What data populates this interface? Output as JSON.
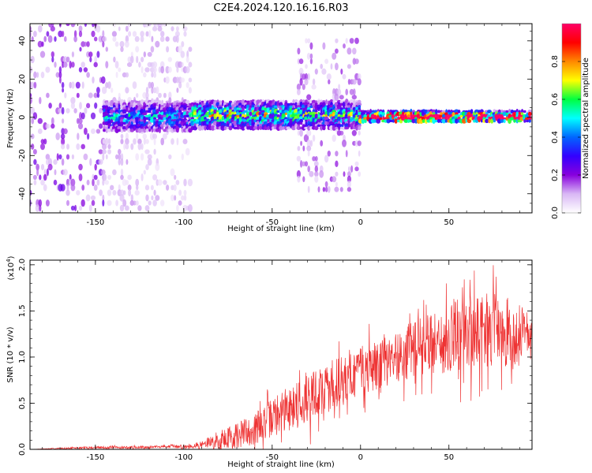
{
  "figure": {
    "title": "C2E4.2024.120.16.16.R03",
    "background": "#ffffff"
  },
  "chart_data": [
    {
      "type": "heatmap",
      "xlabel": "Height of straight line (km)",
      "ylabel": "Frequency (Hz)",
      "xlim": [
        -187,
        97
      ],
      "ylim": [
        -50,
        49
      ],
      "xticks": [
        -150,
        -100,
        -50,
        0,
        50
      ],
      "yticks": [
        -40,
        -20,
        0,
        20,
        40
      ],
      "grid": false,
      "colorbar": {
        "label": "Normalized spectral amplitude",
        "ticks": [
          0.0,
          0.2,
          0.4,
          0.6,
          0.8
        ],
        "range": [
          0,
          1
        ],
        "colors": [
          "#ffffff",
          "#d9b8f5",
          "#8800dd",
          "#3300ff",
          "#0066ff",
          "#00ffff",
          "#00ff40",
          "#ffff00",
          "#ff8800",
          "#ff0000",
          "#ff0066"
        ]
      },
      "regions": [
        {
          "x": [
            -187,
            -145
          ],
          "band": "broadband",
          "freq_range": [
            -50,
            49
          ],
          "amplitude": 0.15
        },
        {
          "x": [
            -145,
            -95
          ],
          "band": "broadband-faint",
          "freq_range": [
            -50,
            49
          ],
          "amplitude": 0.08
        },
        {
          "x": [
            -145,
            -95
          ],
          "band": "centre",
          "freq_range": [
            -8,
            8
          ],
          "amplitude": 0.3
        },
        {
          "x": [
            -95,
            -35
          ],
          "band": "centre",
          "freq_range": [
            -6,
            8
          ],
          "amplitude": 0.45
        },
        {
          "x": [
            -35,
            0
          ],
          "band": "broadband",
          "freq_range": [
            -38,
            40
          ],
          "amplitude": 0.12
        },
        {
          "x": [
            -35,
            0
          ],
          "band": "centre",
          "freq_range": [
            -6,
            8
          ],
          "amplitude": 0.4
        },
        {
          "x": [
            0,
            97
          ],
          "band": "centre",
          "freq_range": [
            -3,
            3
          ],
          "amplitude": 0.85
        }
      ]
    },
    {
      "type": "line",
      "xlabel": "Height of straight line (km)",
      "ylabel": "SNR (10 * v/v)",
      "y_multiplier": "(x10",
      "y_multiplier_exp": "4",
      "y_multiplier_close": ")",
      "xlim": [
        -187,
        97
      ],
      "ylim": [
        0,
        2.05
      ],
      "xticks": [
        -150,
        -100,
        -50,
        0,
        50
      ],
      "yticks": [
        "0.0",
        "0.5",
        "1.0",
        "1.5",
        "2.0"
      ],
      "grid": false,
      "color": "#ee3333",
      "series": [
        {
          "x": [
            -187,
            -170,
            -150,
            -130,
            -110,
            -100,
            -90,
            -80,
            -70,
            -60,
            -50,
            -40,
            -30,
            -20,
            -10,
            0,
            10,
            20,
            30,
            40,
            50,
            60,
            70,
            80,
            90,
            97
          ],
          "y": [
            0.0,
            0.01,
            0.02,
            0.02,
            0.03,
            0.03,
            0.05,
            0.1,
            0.15,
            0.22,
            0.35,
            0.45,
            0.55,
            0.65,
            0.75,
            0.85,
            0.9,
            1.0,
            1.08,
            1.15,
            1.2,
            1.25,
            1.3,
            1.28,
            1.22,
            1.25
          ],
          "noise": [
            0.0,
            0.01,
            0.02,
            0.02,
            0.02,
            0.03,
            0.05,
            0.15,
            0.2,
            0.25,
            0.3,
            0.35,
            0.4,
            0.4,
            0.4,
            0.38,
            0.38,
            0.4,
            0.45,
            0.5,
            0.55,
            0.6,
            0.6,
            0.55,
            0.45,
            0.4
          ]
        }
      ]
    }
  ]
}
